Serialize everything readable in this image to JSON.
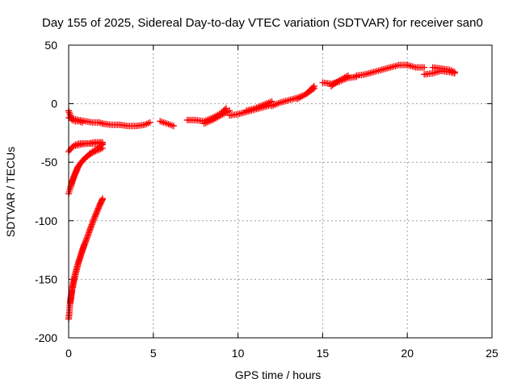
{
  "chart_data": {
    "type": "scatter",
    "title": "Day 155 of 2025, Sidereal Day-to-day VTEC variation (SDTVAR) for receiver san0",
    "xlabel": "GPS time / hours",
    "ylabel": "SDTVAR / TECUs",
    "xlim": [
      0,
      25
    ],
    "ylim": [
      -200,
      50
    ],
    "xticks": [
      0,
      5,
      10,
      15,
      20,
      25
    ],
    "yticks": [
      -200,
      -150,
      -100,
      -50,
      0,
      50
    ],
    "grid": true,
    "marker": "+",
    "series": [
      {
        "name": "SDTVAR",
        "color": "#ff0000",
        "arcs": [
          {
            "x": [
              0.0,
              0.3,
              0.6,
              1.0,
              1.4,
              1.8,
              2.0
            ],
            "y": [
              -12,
              -13,
              -14,
              -15,
              -16,
              -16,
              -17
            ]
          },
          {
            "x": [
              2.0,
              2.5,
              3.0,
              3.5,
              4.0,
              4.5,
              4.8
            ],
            "y": [
              -17,
              -18,
              -18,
              -19,
              -19,
              -18,
              -16
            ]
          },
          {
            "x": [
              5.4,
              5.8,
              6.2
            ],
            "y": [
              -15,
              -17,
              -19
            ]
          },
          {
            "x": [
              7.0,
              7.5,
              8.0,
              8.5,
              9.0,
              9.3
            ],
            "y": [
              -14,
              -14,
              -15,
              -12,
              -8,
              -4
            ]
          },
          {
            "x": [
              8.0,
              8.5,
              9.0,
              9.5
            ],
            "y": [
              -17,
              -14,
              -10,
              -6
            ]
          },
          {
            "x": [
              9.5,
              10.0,
              10.5,
              11.0,
              11.5,
              12.0
            ],
            "y": [
              -10,
              -9,
              -7,
              -5,
              -3,
              -1
            ]
          },
          {
            "x": [
              10.5,
              11.0,
              11.5,
              12.0
            ],
            "y": [
              -6,
              -4,
              -1,
              2
            ]
          },
          {
            "x": [
              12.0,
              12.5,
              13.0,
              13.5,
              14.0,
              14.5
            ],
            "y": [
              -2,
              1,
              3,
              5,
              8,
              13
            ]
          },
          {
            "x": [
              13.5,
              14.0,
              14.5
            ],
            "y": [
              4,
              8,
              15
            ]
          },
          {
            "x": [
              15.0,
              15.5,
              16.0,
              16.5,
              17.0
            ],
            "y": [
              18,
              17,
              19,
              22,
              23
            ]
          },
          {
            "x": [
              15.5,
              16.0,
              16.5
            ],
            "y": [
              15,
              20,
              24
            ]
          },
          {
            "x": [
              17.0,
              17.5,
              18.0,
              18.5,
              19.0,
              19.5,
              20.0
            ],
            "y": [
              24,
              25,
              27,
              29,
              31,
              33,
              33
            ]
          },
          {
            "x": [
              20.0,
              20.5,
              21.0
            ],
            "y": [
              33,
              31,
              31
            ]
          },
          {
            "x": [
              21.0,
              21.5,
              22.0,
              22.5,
              22.8
            ],
            "y": [
              25,
              26,
              28,
              27,
              26
            ]
          },
          {
            "x": [
              21.5,
              22.0,
              22.5,
              22.8
            ],
            "y": [
              31,
              30,
              29,
              27
            ]
          },
          {
            "x": [
              0.0,
              0.1,
              0.2,
              0.4,
              0.6,
              0.8
            ],
            "y": [
              -6,
              -10,
              -14,
              -15,
              -15,
              -16
            ]
          },
          {
            "x": [
              0.0,
              0.2,
              0.4,
              0.7,
              1.0,
              1.3,
              1.6,
              1.9,
              2.0
            ],
            "y": [
              -41,
              -37,
              -36,
              -35,
              -34,
              -34,
              -34,
              -34,
              -34
            ]
          },
          {
            "x": [
              0.2,
              0.4,
              0.6,
              0.9,
              1.2,
              1.5,
              1.8,
              2.0
            ],
            "y": [
              -37,
              -35,
              -34,
              -34,
              -34,
              -33,
              -33,
              -33
            ]
          },
          {
            "x": [
              0.0,
              0.1,
              0.2,
              0.4,
              0.6,
              0.8,
              1.0,
              1.3,
              1.6,
              1.9,
              2.0
            ],
            "y": [
              -77,
              -72,
              -67,
              -60,
              -53,
              -49,
              -46,
              -42,
              -39,
              -36,
              -35
            ]
          },
          {
            "x": [
              0.1,
              0.3,
              0.5,
              0.8,
              1.1,
              1.4,
              1.7,
              2.0
            ],
            "y": [
              -72,
              -62,
              -55,
              -49,
              -45,
              -42,
              -40,
              -38
            ]
          },
          {
            "x": [
              0.0,
              0.05,
              0.1,
              0.2,
              0.3,
              0.5,
              0.7,
              0.9,
              1.1,
              1.3,
              1.5,
              1.7,
              1.9,
              2.0
            ],
            "y": [
              -184,
              -177,
              -168,
              -158,
              -150,
              -139,
              -130,
              -121,
              -114,
              -106,
              -98,
              -91,
              -84,
              -81
            ]
          },
          {
            "x": [
              0.1,
              0.2,
              0.4,
              0.6,
              0.8,
              1.0,
              1.2,
              1.4,
              1.6,
              1.8,
              2.0
            ],
            "y": [
              -170,
              -160,
              -146,
              -135,
              -126,
              -118,
              -110,
              -102,
              -95,
              -88,
              -82
            ]
          }
        ]
      }
    ]
  }
}
